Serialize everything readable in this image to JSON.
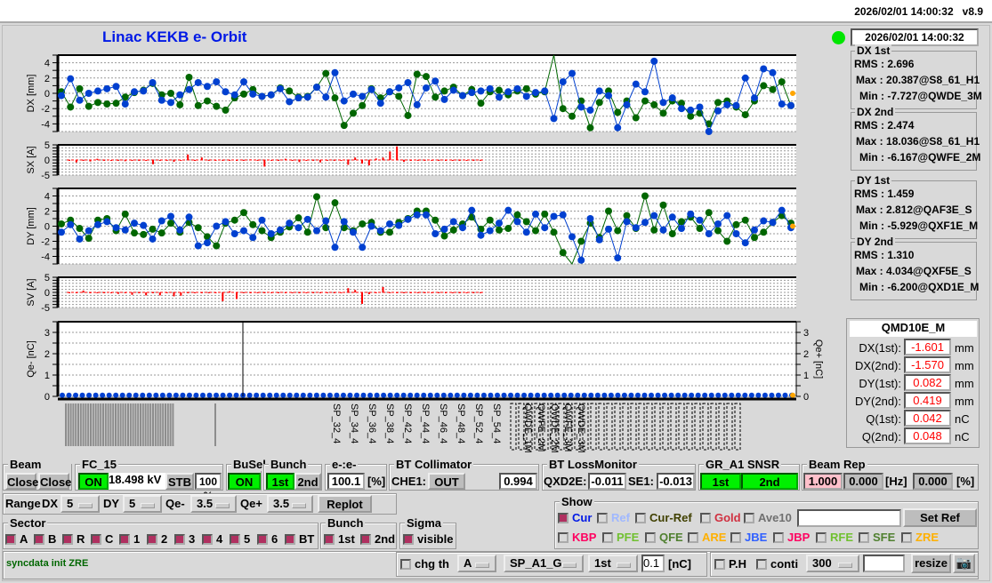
{
  "header": {
    "timestamp": "2026/02/01 14:00:32",
    "version": "v8.9"
  },
  "title": "Linac KEKB e- Orbit",
  "status_led_color": "#00e600",
  "clock": "2026/02/01 14:00:32",
  "colors": {
    "first": "#006600",
    "second": "#0040d0",
    "steer": "#ff0000",
    "selected": "#ffa500"
  },
  "chart_data": [
    {
      "type": "line",
      "ylabel": "DX [mm]",
      "ylim": [
        -5,
        5
      ],
      "yticks": [
        4,
        2,
        0,
        -2,
        -4
      ],
      "series": [
        {
          "values": [
            0.2,
            -1.8,
            0.6,
            -1.7,
            -1.2,
            -1.4,
            -1.3,
            -0.5,
            0.1,
            0.4,
            1.3,
            -0.2,
            0,
            -1.5,
            2.1,
            -1.6,
            -1,
            -1.7,
            -2.2,
            -0.6,
            -0.1,
            0.5,
            -0.4,
            -0.2,
            0.7,
            0.3,
            -0.5,
            -0.4,
            0.8,
            2.6,
            -0.6,
            -4.2,
            -2.6,
            -1.6,
            0.6,
            -0.6,
            0.2,
            -0.4,
            -2.9,
            2.5,
            2.2,
            -0.5,
            0.3,
            0.8,
            -0.3,
            0.5,
            -1.3,
            0.2,
            0.4,
            -0.2,
            0.3,
            0.6,
            -0.1,
            0.2,
            5.5,
            -2,
            -3,
            -1,
            -4.5,
            -1.2,
            0.3,
            -2.5,
            -1,
            -3.2,
            -1,
            -1.5,
            -2.6,
            -1,
            -1.3,
            -3,
            -2.6,
            -4,
            -1.2,
            -1,
            -1.8,
            -2.8,
            -1,
            1,
            0.5,
            1.5,
            -1.6
          ]
        },
        {
          "values": [
            -0.3,
            1.9,
            -0.9,
            0,
            0.3,
            0.6,
            0.9,
            -1.4,
            0.2,
            0.3,
            1.4,
            -0.9,
            -1.2,
            -0.2,
            0.5,
            1.4,
            0.9,
            1.5,
            0.2,
            -0.2,
            1.5,
            -0.1,
            -0.4,
            -0.2,
            0.6,
            -1.1,
            -0.6,
            -0.5,
            0.8,
            -0.5,
            2.7,
            -1,
            -0.1,
            -0.4,
            0.5,
            -1.3,
            0.2,
            0.7,
            1.4,
            -1.5,
            0.7,
            1.6,
            -0.8,
            0.4,
            -0.3,
            0.1,
            0.3,
            0.6,
            -0.5,
            0.2,
            0.6,
            -0.4,
            0.1,
            0.3,
            -3.3,
            1.5,
            2.6,
            -1.8,
            -2.2,
            0.3,
            -0.3,
            -4.5,
            -1.5,
            1.2,
            0.2,
            4.2,
            -1.2,
            -0.6,
            -2,
            -2.2,
            -1.8,
            -5,
            -2.3,
            -1.5,
            -1.6,
            2,
            -0.6,
            3.2,
            2.7,
            -1.4,
            -1.6
          ]
        }
      ]
    },
    {
      "type": "bar",
      "ylabel": "SX [A]",
      "ylim": [
        -5,
        5
      ],
      "yticks": [
        5,
        0,
        -5
      ],
      "values": [
        0,
        -0.8,
        0,
        -0.5,
        0.4,
        0,
        0,
        0,
        -0.4,
        0,
        -0.3,
        0,
        -1.4,
        0,
        0,
        -0.6,
        0,
        1.8,
        0,
        0.8,
        0,
        0,
        0,
        0,
        0,
        0,
        0.2,
        0,
        -2.2,
        0,
        0,
        0.4,
        0,
        -0.7,
        0,
        0,
        -0.8,
        0,
        0,
        0,
        -1.6,
        0.8,
        -1.2,
        -1.8,
        0.5,
        0.8,
        2.8,
        4.5,
        -0.6,
        0,
        0,
        0,
        0,
        0,
        0,
        0,
        0,
        0,
        0,
        0
      ]
    },
    {
      "type": "line",
      "ylabel": "DY [mm]",
      "ylim": [
        -5,
        5
      ],
      "yticks": [
        4,
        2,
        0,
        -2,
        -4
      ],
      "series": [
        {
          "values": [
            0.3,
            0.8,
            -0.3,
            -1.6,
            0.8,
            1,
            -0.6,
            1.6,
            -0.9,
            -1.1,
            -0.4,
            -0.9,
            0.4,
            -0.8,
            0.5,
            -0.2,
            -1.4,
            -2.6,
            0.4,
            0.8,
            1.8,
            0.2,
            -0.6,
            -1.5,
            -0.8,
            -0.1,
            1.1,
            -0.8,
            3.9,
            -0.2,
            3.1,
            -0.2,
            -0.6,
            0.3,
            0.5,
            -0.8,
            -0.8,
            0.5,
            1,
            2,
            2,
            0.8,
            -1.3,
            -0.5,
            0.3,
            1.2,
            -0.4,
            0.8,
            -0.5,
            -0.3,
            1.5,
            0.6,
            -0.6,
            1.6,
            -0.8,
            -3.5,
            -6,
            -2,
            0.4,
            -1.5,
            2,
            -0.6,
            1.4,
            -0.3,
            4,
            -0.5,
            2.8,
            -1,
            0.6,
            1.2,
            -0.3,
            1.8,
            -0.6,
            -2,
            0.2,
            0.8,
            -1.5,
            -0.8,
            0.5,
            1.4,
            0.4
          ]
        },
        {
          "values": [
            -0.8,
            0.2,
            -1.7,
            -0.6,
            0.2,
            0.6,
            -0.2,
            -0.5,
            0.4,
            0.1,
            -1.7,
            0.7,
            1.3,
            -0.5,
            1.2,
            -2.6,
            -2.2,
            0,
            0.6,
            -1,
            -0.6,
            -1.5,
            0.8,
            -1,
            -0.5,
            0.4,
            -0.2,
            0.9,
            -0.6,
            0.7,
            -2.8,
            0.6,
            -0.8,
            -2.8,
            0,
            -0.6,
            0.3,
            0.1,
            0.9,
            1.5,
            1.5,
            -1,
            -0.4,
            0.6,
            -0.2,
            2.1,
            -1.2,
            -0.6,
            0.4,
            2.1,
            0.6,
            -0.8,
            1.6,
            -0.2,
            1.3,
            1.5,
            -1.4,
            -4.5,
            1,
            -1.8,
            -0.4,
            -4.2,
            0.6,
            -0.2,
            0.5,
            1.4,
            -0.5,
            1.2,
            -0.3,
            1.6,
            0.8,
            -1,
            0.3,
            1.4,
            -1,
            -2.2,
            -0.5,
            0.7,
            0.5,
            2.1,
            -0.2
          ]
        }
      ]
    },
    {
      "type": "bar",
      "ylabel": "SV [A]",
      "ylim": [
        -5,
        5
      ],
      "yticks": [
        5,
        0,
        -5
      ],
      "values": [
        0,
        0,
        0.6,
        0,
        0,
        0,
        0,
        -0.5,
        0,
        -0.8,
        0,
        -1,
        0,
        -1,
        0,
        -1.3,
        -1.1,
        0,
        0,
        0,
        0,
        0,
        -2.9,
        0.4,
        -2.2,
        0,
        0,
        0,
        0,
        0,
        0,
        0,
        0,
        0,
        0,
        0,
        0,
        0,
        0,
        0,
        1.4,
        0.8,
        -3.8,
        -0.6,
        0,
        1.8,
        0,
        0,
        0,
        0,
        0,
        0,
        0,
        0,
        0,
        0,
        0,
        0,
        0,
        0
      ]
    },
    {
      "type": "scatter",
      "ylabel": "Qe- [nC]",
      "y2label": "Qe+ [nC]",
      "ylim": [
        0,
        3.5
      ],
      "yticks": [
        3,
        2,
        1,
        0
      ],
      "series": [
        {
          "values": [
            0.05
          ]
        }
      ],
      "marker_y": 3.5,
      "xtick_labels": [
        "SP_32_4",
        "SP_34_4",
        "SP_36_4",
        "SP_38_4",
        "SP_42_4",
        "SP_44_4",
        "SP_46_4",
        "SP_48_4",
        "SP_52_4",
        "SP_54_4",
        "QWDE_1M",
        "QWFE_2M",
        "QWDE_2M",
        "QWFE_3M",
        "QWDE_3M"
      ]
    }
  ],
  "stats": [
    {
      "title": "DX 1st",
      "rms_label": "RMS :",
      "rms": "2.696",
      "max_label": "Max :",
      "max": "20.387@S8_61_H1",
      "min_label": "Min :",
      "min": "-7.727@QWDE_3M"
    },
    {
      "title": "DX 2nd",
      "rms_label": "RMS :",
      "rms": "2.474",
      "max_label": "Max :",
      "max": "18.036@S8_61_H1",
      "min_label": "Min :",
      "min": "-6.167@QWFE_2M"
    },
    {
      "title": "DY 1st",
      "rms_label": "RMS :",
      "rms": "1.459",
      "max_label": "Max :",
      "max": "2.812@QAF3E_S",
      "min_label": "Min :",
      "min": "-5.929@QXF1E_M"
    },
    {
      "title": "DY 2nd",
      "rms_label": "RMS :",
      "rms": "1.310",
      "max_label": "Max :",
      "max": "4.034@QXF5E_S",
      "min_label": "Min :",
      "min": "-6.200@QXD1E_M"
    }
  ],
  "selected": {
    "name": "QMD10E_M",
    "rows": [
      {
        "label": "DX(1st):",
        "value": "-1.601",
        "unit": "mm"
      },
      {
        "label": "DX(2nd):",
        "value": "-1.570",
        "unit": "mm"
      },
      {
        "label": "DY(1st):",
        "value": "0.082",
        "unit": "mm"
      },
      {
        "label": "DY(2nd):",
        "value": "0.419",
        "unit": "mm"
      },
      {
        "label": "Q(1st):",
        "value": "0.042",
        "unit": "nC"
      },
      {
        "label": "Q(2nd):",
        "value": "0.048",
        "unit": "nC"
      }
    ]
  },
  "controls": {
    "beam_gate": {
      "title": "Beam Gate",
      "b1": "Close",
      "b2": "Close"
    },
    "fc15": {
      "title": "FC_15",
      "on": "ON",
      "kv": "18.498 kV",
      "stb": "STB",
      "pct": "100 %"
    },
    "busel": {
      "title": "BuSel",
      "on": "ON"
    },
    "bunch": {
      "title": "Bunch",
      "first": "1st",
      "second": "2nd"
    },
    "ee": {
      "title": "e-:e-",
      "value": "100.1",
      "unit": "[%]"
    },
    "collimator": {
      "title": "BT Collimator",
      "label": "CHE1:",
      "state": "OUT",
      "value": "0.994"
    },
    "loss": {
      "title": "BT LossMonitor",
      "l1": "QXD2E:",
      "v1": "-0.011",
      "l2": "SE1:",
      "v2": "-0.013"
    },
    "gr": {
      "title": "GR_A1  SNSR",
      "first": "1st",
      "second": "2nd"
    },
    "rep": {
      "title": "Beam Rep",
      "v1": "1.000",
      "v2": "0.000",
      "hz": "[Hz]",
      "v3": "0.000",
      "pct": "[%]"
    },
    "range": {
      "label": "Range",
      "dx_label": "DX",
      "dx": "5",
      "dy_label": "DY",
      "dy": "5",
      "qem_label": "Qe-",
      "qem": "3.5",
      "qep_label": "Qe+",
      "qep": "3.5",
      "replot": "Replot"
    },
    "sector": {
      "title": "Sector",
      "items": [
        "A",
        "B",
        "R",
        "C",
        "1",
        "2",
        "3",
        "4",
        "5",
        "6",
        "BT"
      ]
    },
    "bunch2": {
      "title": "Bunch",
      "first": "1st",
      "second": "2nd"
    },
    "sigma": {
      "title": "Sigma",
      "visible": "visible"
    },
    "show": {
      "title": "Show",
      "row1": [
        {
          "label": "Cur",
          "color": "#0019e6",
          "on": true
        },
        {
          "label": "Ref",
          "color": "#a0b8ff",
          "on": false
        },
        {
          "label": "Cur-Ref",
          "color": "#404000",
          "on": false
        },
        {
          "label": "Gold",
          "color": "#d03040",
          "on": false
        },
        {
          "label": "Ave10",
          "color": "#707070",
          "on": false
        }
      ],
      "set_ref": "Set Ref",
      "ref_input": "",
      "row2": [
        {
          "label": "KBP",
          "color": "#ff0060"
        },
        {
          "label": "PFE",
          "color": "#70c030"
        },
        {
          "label": "QFE",
          "color": "#508030"
        },
        {
          "label": "ARE",
          "color": "#ffb000"
        },
        {
          "label": "JBE",
          "color": "#3060ff"
        },
        {
          "label": "JBP",
          "color": "#ff0060"
        },
        {
          "label": "RFE",
          "color": "#70c030"
        },
        {
          "label": "SFE",
          "color": "#508030"
        },
        {
          "label": "ZRE",
          "color": "#ffb000"
        }
      ]
    },
    "status_msg": "syncdata init ZRE",
    "chg": {
      "label": "chg th",
      "sel1": "A",
      "sel2": "SP_A1_G",
      "sel3": "1st",
      "value": "0.1",
      "unit": "[nC]"
    },
    "ph": {
      "label": "P.H",
      "conti": "conti",
      "sel": "300",
      "input": "",
      "resize": "resize"
    }
  }
}
